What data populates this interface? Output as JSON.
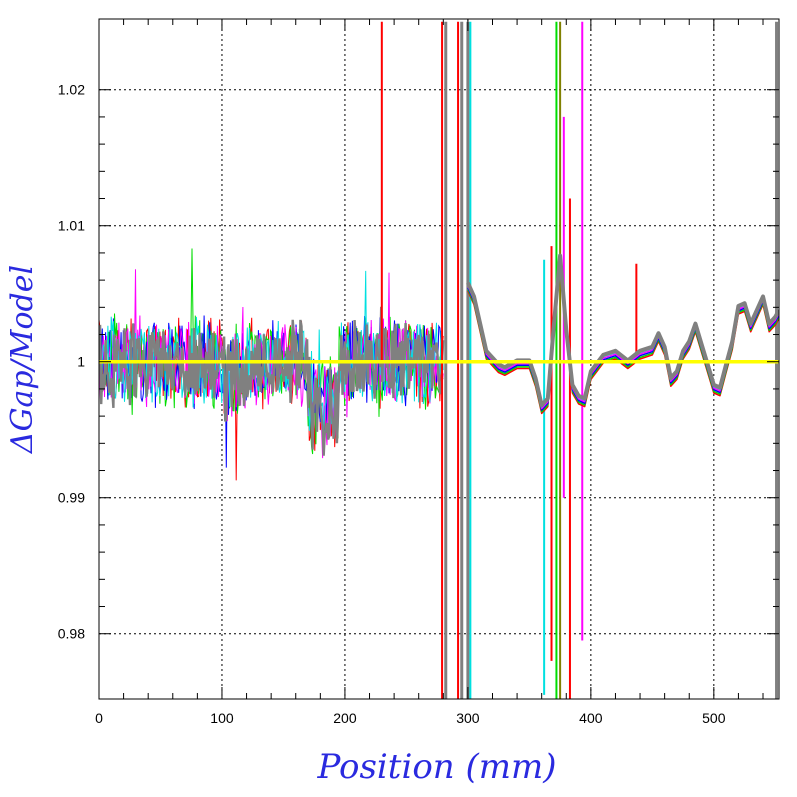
{
  "chart_data": {
    "type": "line",
    "title": "",
    "xlabel": "Position (mm)",
    "ylabel": "ΔGap/Model",
    "xlim": [
      0,
      553
    ],
    "ylim": [
      0.9752,
      1.0252
    ],
    "x_ticks": [
      0,
      100,
      200,
      300,
      400,
      500
    ],
    "x_tick_labels": [
      "0",
      "100",
      "200",
      "300",
      "400",
      "500"
    ],
    "y_ticks": [
      0.98,
      0.99,
      1.0,
      1.01,
      1.02
    ],
    "y_tick_labels": [
      "0.98",
      "0.99",
      "1",
      "1.01",
      "1.02"
    ],
    "grid": true,
    "grid_style": "dotted",
    "reference_line": {
      "y": 1.0,
      "color": "#ffff00"
    },
    "series_colors": [
      "#ff0000",
      "#00dd00",
      "#0000ff",
      "#ff00ff",
      "#00e0e0",
      "#808080"
    ],
    "noisy_region_x": [
      0,
      280
    ],
    "smooth_region": {
      "x": [
        300,
        305,
        315,
        325,
        330,
        340,
        350,
        355,
        360,
        365,
        370,
        375,
        380,
        385,
        390,
        395,
        400,
        410,
        420,
        430,
        440,
        450,
        455,
        460,
        465,
        470,
        475,
        480,
        485,
        490,
        495,
        500,
        505,
        510,
        515,
        520,
        525,
        530,
        535,
        540,
        545,
        550,
        553
      ],
      "y": [
        1.0055,
        1.0045,
        1.0005,
        0.9995,
        0.9993,
        0.9998,
        0.9998,
        0.9985,
        0.9965,
        0.997,
        1.0025,
        1.0075,
        1.002,
        0.998,
        0.9972,
        0.997,
        0.999,
        1.0002,
        1.0005,
        0.9998,
        1.0005,
        1.0008,
        1.0018,
        1.0008,
        0.9985,
        0.999,
        1.0005,
        1.0012,
        1.0025,
        1.001,
        0.9995,
        0.998,
        0.9978,
        0.9995,
        1.0012,
        1.0038,
        1.004,
        1.0025,
        1.0035,
        1.0045,
        1.0025,
        1.003,
        1.0035
      ]
    },
    "spikes": [
      {
        "x": 230,
        "ymin": 1.0,
        "ymax": 1.025,
        "color": "#ff0000"
      },
      {
        "x": 279,
        "ymin": 0.975,
        "ymax": 1.025,
        "color": "#ff0000"
      },
      {
        "x": 282,
        "ymin": 0.975,
        "ymax": 1.025,
        "color": "#808080"
      },
      {
        "x": 292,
        "ymin": 0.975,
        "ymax": 1.025,
        "color": "#ff0000"
      },
      {
        "x": 295,
        "ymin": 0.975,
        "ymax": 1.025,
        "color": "#808080"
      },
      {
        "x": 300,
        "ymin": 0.975,
        "ymax": 1.025,
        "color": "#808080"
      },
      {
        "x": 302,
        "ymin": 0.975,
        "ymax": 1.025,
        "color": "#00e0e0"
      },
      {
        "x": 362,
        "ymin": 0.9755,
        "ymax": 1.0075,
        "color": "#00e0e0"
      },
      {
        "x": 368,
        "ymin": 0.978,
        "ymax": 1.0085,
        "color": "#ff0000"
      },
      {
        "x": 372,
        "ymin": 0.975,
        "ymax": 1.025,
        "color": "#00dd00"
      },
      {
        "x": 375,
        "ymin": 0.975,
        "ymax": 1.025,
        "color": "#808000"
      },
      {
        "x": 378,
        "ymin": 0.99,
        "ymax": 1.018,
        "color": "#ff00ff"
      },
      {
        "x": 383,
        "ymin": 0.975,
        "ymax": 1.012,
        "color": "#ff0000"
      },
      {
        "x": 393,
        "ymin": 0.9795,
        "ymax": 1.025,
        "color": "#ff00ff"
      },
      {
        "x": 437,
        "ymin": 1.0,
        "ymax": 1.0072,
        "color": "#ff0000"
      },
      {
        "x": 551,
        "ymin": 0.975,
        "ymax": 1.025,
        "color": "#808080"
      }
    ]
  }
}
